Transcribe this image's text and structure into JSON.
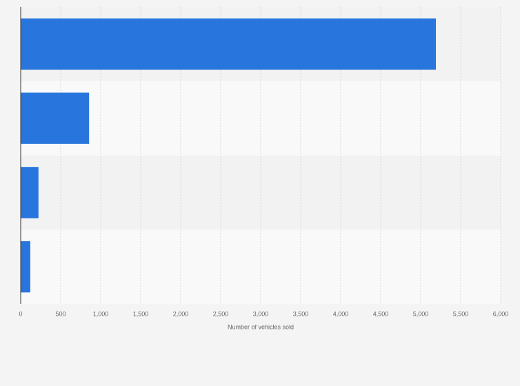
{
  "chart_data": {
    "type": "hbar",
    "x_label": "Number of vehicles sold",
    "categories": [
      null,
      null,
      null,
      null
    ],
    "values": [
      5190,
      855,
      222,
      120
    ],
    "color": "#2876dd",
    "xlim": [
      0,
      6000
    ],
    "xticks": [
      0,
      500,
      {
        "value": 1000,
        "label": "1,000"
      },
      {
        "value": 1500,
        "label": "1,500"
      },
      {
        "value": 2000,
        "label": "2,000"
      },
      {
        "value": 2500,
        "label": "2,500"
      },
      {
        "value": 3000,
        "label": "3,000"
      },
      {
        "value": 3500,
        "label": "3,500"
      },
      {
        "value": 4000,
        "label": "4,000"
      },
      {
        "value": 4500,
        "label": "4,500"
      },
      {
        "value": 5000,
        "label": "5,000"
      },
      {
        "value": 5500,
        "label": "5,500"
      },
      {
        "value": 6000,
        "label": "6,000"
      }
    ],
    "grid": true
  }
}
